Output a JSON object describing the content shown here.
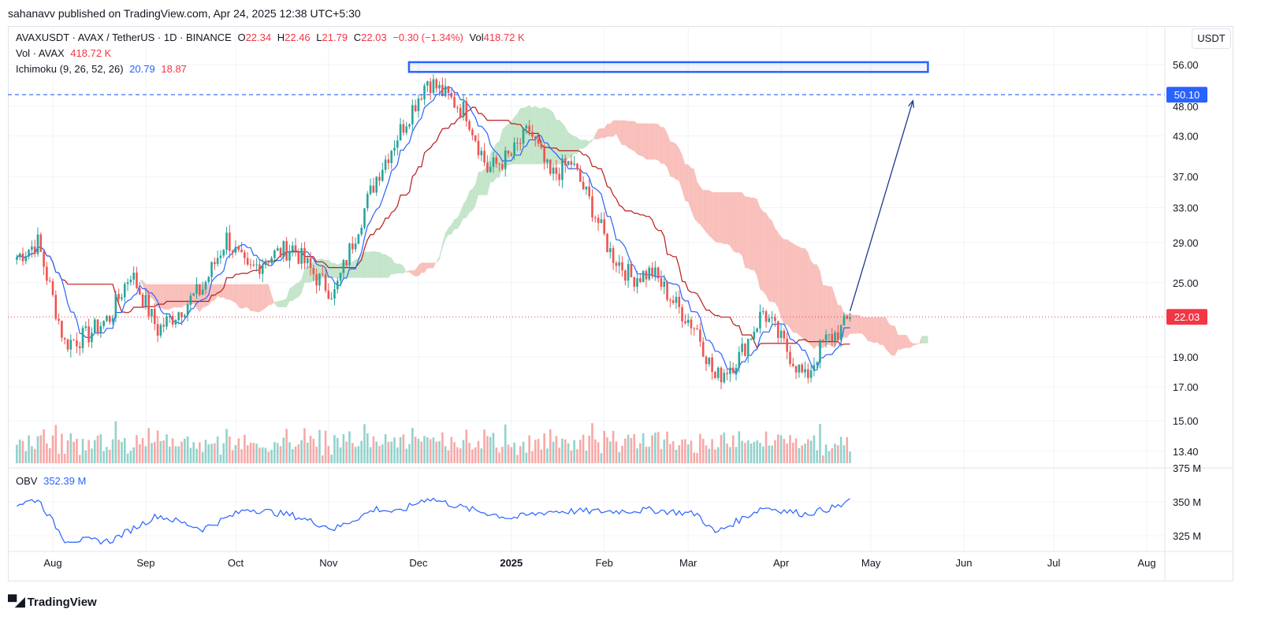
{
  "header": {
    "publisher_note": "sahanavv published on TradingView.com, Apr 24, 2025 12:38 UTC+5:30"
  },
  "legend": {
    "symbol": "AVAXUSDT · AVAX / TetherUS · 1D · BINANCE",
    "o_label": "O",
    "o_value": "22.34",
    "h_label": "H",
    "h_value": "22.46",
    "l_label": "L",
    "l_value": "21.79",
    "c_label": "C",
    "c_value": "22.03",
    "change": "−0.30 (−1.34%)",
    "vol_label": "Vol",
    "vol_value": "418.72 K",
    "vol_line_label": "Vol · AVAX",
    "vol_line_value": "418.72 K",
    "ichimoku_label": "Ichimoku (9, 26, 52, 26)",
    "ichimoku_v1": "20.79",
    "ichimoku_v2": "18.87",
    "obv_label": "OBV",
    "obv_value": "352.39 M"
  },
  "currency_button": "USDT",
  "footer": {
    "brand": "TradingView",
    "logo_icon": "tradingview-logo-icon"
  },
  "colors": {
    "up": "#26a69a",
    "down": "#ef5350",
    "blue": "#2962ff",
    "red_line": "#b71c1c",
    "cloud_red": "#f8b4ae",
    "cloud_green": "#b9e0c0",
    "obv": "#2962ff"
  },
  "chart_data": [
    {
      "type": "candlestick",
      "title": "AVAXUSDT · AVAX / TetherUS · 1D · BINANCE",
      "x_ticks": [
        "Aug",
        "Sep",
        "Oct",
        "Nov",
        "Dec",
        "2025",
        "Feb",
        "Mar",
        "Apr",
        "May",
        "Jun",
        "Jul",
        "Aug"
      ],
      "y_ticks": [
        "56.00",
        "48.00",
        "43.00",
        "37.00",
        "33.00",
        "29.00",
        "25.00",
        "19.00",
        "17.00",
        "15.00",
        "13.40"
      ],
      "y_scale": "log",
      "price_tags": [
        {
          "label": "50.10",
          "color": "#2962ff"
        },
        {
          "label": "22.03",
          "color": "#f23645"
        }
      ],
      "resistance_zone": [
        54.5,
        56.5
      ],
      "dashed_level": 50.1,
      "last_price": 22.03,
      "projection_arrow": {
        "from": [
          "2025-04-24",
          22.5
        ],
        "to": [
          "2025-05-15",
          49.0
        ]
      },
      "close_series": [
        {
          "date": "2024-07-20",
          "close": 27.5
        },
        {
          "date": "2024-07-27",
          "close": 29.0
        },
        {
          "date": "2024-08-05",
          "close": 20.0
        },
        {
          "date": "2024-08-12",
          "close": 20.5
        },
        {
          "date": "2024-08-20",
          "close": 22.0
        },
        {
          "date": "2024-08-27",
          "close": 26.0
        },
        {
          "date": "2024-09-05",
          "close": 21.0
        },
        {
          "date": "2024-09-12",
          "close": 22.5
        },
        {
          "date": "2024-09-20",
          "close": 24.5
        },
        {
          "date": "2024-09-28",
          "close": 29.5
        },
        {
          "date": "2024-10-05",
          "close": 26.0
        },
        {
          "date": "2024-10-12",
          "close": 27.5
        },
        {
          "date": "2024-10-20",
          "close": 28.5
        },
        {
          "date": "2024-10-28",
          "close": 25.5
        },
        {
          "date": "2024-11-03",
          "close": 24.0
        },
        {
          "date": "2024-11-10",
          "close": 30.0
        },
        {
          "date": "2024-11-17",
          "close": 37.0
        },
        {
          "date": "2024-11-24",
          "close": 43.0
        },
        {
          "date": "2024-12-04",
          "close": 53.0
        },
        {
          "date": "2024-12-10",
          "close": 50.0
        },
        {
          "date": "2024-12-17",
          "close": 47.0
        },
        {
          "date": "2024-12-24",
          "close": 38.0
        },
        {
          "date": "2025-01-01",
          "close": 40.0
        },
        {
          "date": "2025-01-07",
          "close": 44.0
        },
        {
          "date": "2025-01-14",
          "close": 37.0
        },
        {
          "date": "2025-01-21",
          "close": 39.0
        },
        {
          "date": "2025-01-28",
          "close": 33.0
        },
        {
          "date": "2025-02-03",
          "close": 28.0
        },
        {
          "date": "2025-02-10",
          "close": 25.5
        },
        {
          "date": "2025-02-17",
          "close": 26.0
        },
        {
          "date": "2025-02-25",
          "close": 23.0
        },
        {
          "date": "2025-03-04",
          "close": 21.0
        },
        {
          "date": "2025-03-10",
          "close": 17.5
        },
        {
          "date": "2025-03-18",
          "close": 19.0
        },
        {
          "date": "2025-03-26",
          "close": 22.5
        },
        {
          "date": "2025-04-03",
          "close": 19.5
        },
        {
          "date": "2025-04-09",
          "close": 17.5
        },
        {
          "date": "2025-04-15",
          "close": 20.0
        },
        {
          "date": "2025-04-21",
          "close": 21.0
        },
        {
          "date": "2025-04-24",
          "close": 22.03
        }
      ]
    },
    {
      "type": "line",
      "title": "OBV",
      "y_ticks": [
        "375 M",
        "350 M",
        "325 M"
      ],
      "last_value": "352.39 M",
      "series": [
        {
          "name": "OBV",
          "values": [
            {
              "date": "2024-07-20",
              "v": 348
            },
            {
              "date": "2024-07-27",
              "v": 352
            },
            {
              "date": "2024-08-05",
              "v": 322
            },
            {
              "date": "2024-08-20",
              "v": 321
            },
            {
              "date": "2024-09-05",
              "v": 340
            },
            {
              "date": "2024-09-20",
              "v": 330
            },
            {
              "date": "2024-10-05",
              "v": 345
            },
            {
              "date": "2024-10-20",
              "v": 340
            },
            {
              "date": "2024-11-03",
              "v": 330
            },
            {
              "date": "2024-11-17",
              "v": 345
            },
            {
              "date": "2024-11-24",
              "v": 342
            },
            {
              "date": "2024-12-04",
              "v": 353
            },
            {
              "date": "2024-12-17",
              "v": 345
            },
            {
              "date": "2025-01-01",
              "v": 338
            },
            {
              "date": "2025-01-14",
              "v": 343
            },
            {
              "date": "2025-02-03",
              "v": 343
            },
            {
              "date": "2025-02-17",
              "v": 344
            },
            {
              "date": "2025-03-04",
              "v": 341
            },
            {
              "date": "2025-03-10",
              "v": 327
            },
            {
              "date": "2025-03-26",
              "v": 346
            },
            {
              "date": "2025-04-09",
              "v": 341
            },
            {
              "date": "2025-04-21",
              "v": 347
            },
            {
              "date": "2025-04-24",
              "v": 352.39
            }
          ]
        }
      ]
    }
  ]
}
